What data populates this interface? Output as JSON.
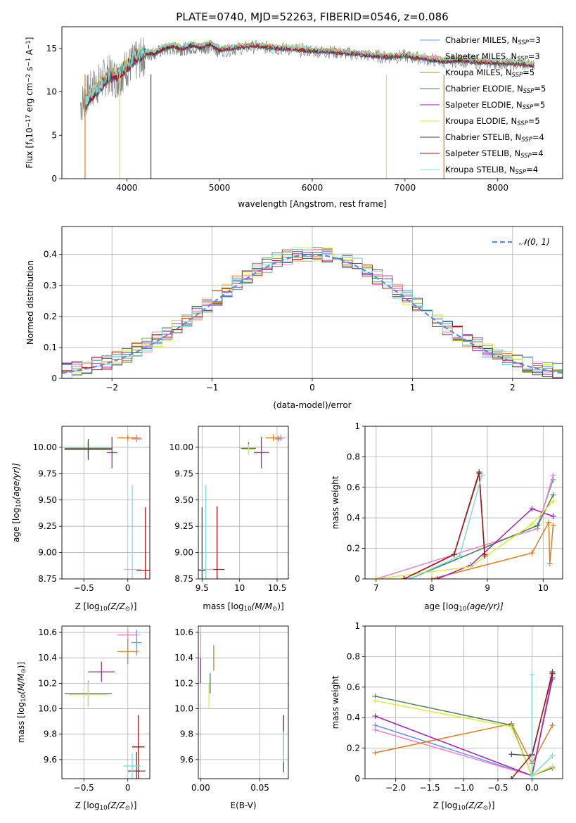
{
  "figure": {
    "title": "PLATE=0740, MJD=52263, FIBERID=0546, z=0.086"
  },
  "series_styles": [
    {
      "name": "Chabrier MILES, N_SSP=3",
      "label_main": "Chabrier MILES, N",
      "label_sub": "SSP",
      "label_tail": "=3",
      "color": "#6495ed"
    },
    {
      "name": "Salpeter MILES, N_SSP=3",
      "label_main": "Salpeter MILES, N",
      "label_sub": "SSP",
      "label_tail": "=3",
      "color": "#f781bf"
    },
    {
      "name": "Kroupa MILES, N_SSP=5",
      "label_main": "Kroupa MILES, N",
      "label_sub": "SSP",
      "label_tail": "=5",
      "color": "#e07b24"
    },
    {
      "name": "Chabrier ELODIE, N_SSP=5",
      "label_main": "Chabrier ELODIE, N",
      "label_sub": "SSP",
      "label_tail": "=5",
      "color": "#4f7f55"
    },
    {
      "name": "Salpeter ELODIE, N_SSP=5",
      "label_main": "Salpeter ELODIE, N",
      "label_sub": "SSP",
      "label_tail": "=5",
      "color": "#9b27ad"
    },
    {
      "name": "Kroupa ELODIE, N_SSP=5",
      "label_main": "Kroupa ELODIE, N",
      "label_sub": "SSP",
      "label_tail": "=5",
      "color": "#d8ec3c"
    },
    {
      "name": "Chabrier STELIB, N_SSP=4",
      "label_main": "Chabrier STELIB, N",
      "label_sub": "SSP",
      "label_tail": "=4",
      "color": "#4a4a4a"
    },
    {
      "name": "Salpeter STELIB, N_SSP=4",
      "label_main": "Salpeter STELIB, N",
      "label_sub": "SSP",
      "label_tail": "=4",
      "color": "#b01010"
    },
    {
      "name": "Kroupa STELIB, N_SSP=4",
      "label_main": "Kroupa STELIB, N",
      "label_sub": "SSP",
      "label_tail": "=4",
      "color": "#7fd9d9"
    }
  ],
  "chart_data": [
    {
      "id": "spectrum",
      "type": "line",
      "xlabel": "wavelength [Angstrom, rest frame]",
      "ylabel": "Flux [f_λ 10^-17 erg cm^-2 s^-1 A^-1]",
      "ylabel_parts": [
        "Flux [f",
        "λ",
        "10",
        "−17",
        " erg cm",
        "−2",
        " s",
        "−1",
        " A",
        "−1",
        "]"
      ],
      "xlim": [
        3300,
        8700
      ],
      "ylim": [
        0,
        17.5
      ],
      "xticks": [
        4000,
        5000,
        6000,
        7000,
        8000
      ],
      "yticks": [
        0,
        5,
        10,
        15
      ],
      "grid": false,
      "legend_position": "upper-right",
      "data_color": "#808080",
      "data_x": [
        3500,
        3600,
        3700,
        3800,
        3900,
        4000,
        4100,
        4200,
        4300,
        4400,
        4500,
        4600,
        4700,
        4800,
        4900,
        5000,
        5200,
        5400,
        5600,
        5800,
        6000,
        6200,
        6400,
        6600,
        6800,
        7000,
        7200,
        7400,
        7600,
        7800,
        8000,
        8200,
        8400
      ],
      "data_y": [
        8.5,
        10.0,
        11.0,
        12.0,
        11.5,
        12.8,
        13.5,
        14.2,
        14.5,
        14.8,
        15.0,
        14.9,
        15.1,
        15.0,
        15.2,
        14.7,
        15.0,
        15.2,
        15.0,
        14.9,
        14.7,
        14.6,
        14.4,
        14.2,
        14.0,
        14.1,
        13.8,
        13.5,
        13.6,
        13.4,
        13.3,
        13.2,
        13.0
      ],
      "model_x": [
        3550,
        3600,
        3700,
        3800,
        3900,
        4000,
        4100,
        4200,
        4300,
        4400,
        4500,
        4600,
        4700,
        4800,
        4900,
        5000,
        5200,
        5400,
        5600,
        5800,
        6000,
        6200,
        6400,
        6600,
        6800,
        7000,
        7200,
        7400,
        7600,
        7800,
        8000,
        8200,
        8400
      ],
      "model_y": [
        8.6,
        9.5,
        10.5,
        11.8,
        12.0,
        13.0,
        14.0,
        14.6,
        14.5,
        15.1,
        15.4,
        15.0,
        15.5,
        15.2,
        15.6,
        14.9,
        15.2,
        15.4,
        15.1,
        15.0,
        14.8,
        14.7,
        14.5,
        14.3,
        14.1,
        14.2,
        13.9,
        13.6,
        13.7,
        13.5,
        13.4,
        13.3,
        13.1
      ]
    },
    {
      "id": "residuals",
      "type": "line",
      "xlabel": "(data-model)/error",
      "ylabel": "Normed distribution",
      "xlim": [
        -2.5,
        2.5
      ],
      "ylim": [
        0,
        0.49
      ],
      "xticks": [
        -2,
        -1,
        0,
        1,
        2
      ],
      "yticks": [
        0.0,
        0.1,
        0.2,
        0.3,
        0.4
      ],
      "grid": true,
      "legend_position": "upper-right",
      "legend": "𝒩(0, 1)",
      "gauss_color": "#5b8bd9",
      "bin_width": 0.1
    },
    {
      "id": "age-vs-Z",
      "type": "scatter",
      "xlabel": "Z [log10(Z/Z⊙)]",
      "xlabel_parts": [
        "Z [log",
        "10",
        "(Z/Z",
        "⊙",
        ")]"
      ],
      "ylabel_parts": [
        "age  [log",
        "10",
        "(age/yr)]"
      ],
      "xlim": [
        -0.75,
        0.25
      ],
      "ylim": [
        8.75,
        10.2
      ],
      "xticks": [
        -0.5,
        0.0
      ],
      "yticks": [
        8.75,
        9.0,
        9.25,
        9.5,
        9.75,
        10.0
      ],
      "ytick_labels": [
        "8.75",
        "9.00",
        "9.25",
        "9.50",
        "9.75",
        "10.00"
      ],
      "grid": true,
      "points": [
        {
          "s": 0,
          "x": 0.1,
          "y": 10.08,
          "ex": 0.06,
          "ey": 0.03
        },
        {
          "s": 1,
          "x": 0.1,
          "y": 10.09,
          "ex": 0.05,
          "ey": 0.03
        },
        {
          "s": 2,
          "x": 0.0,
          "y": 10.09,
          "ex": 0.12,
          "ey": 0.03
        },
        {
          "s": 3,
          "x": -0.45,
          "y": 9.99,
          "ex": 0.27,
          "ey": 0.06
        },
        {
          "s": 4,
          "x": -0.18,
          "y": 9.95,
          "ex": 0.06,
          "ey": 0.15
        },
        {
          "s": 5,
          "x": -0.45,
          "y": 9.98,
          "ex": 0.22,
          "ey": 0.05
        },
        {
          "s": 6,
          "x": -0.45,
          "y": 9.98,
          "ex": 0.27,
          "ey": 0.1
        },
        {
          "s": 7,
          "x": 0.2,
          "y": 8.83,
          "ex": 0.1,
          "ey": 0.6
        },
        {
          "s": 8,
          "x": 0.05,
          "y": 8.84,
          "ex": 0.1,
          "ey": 0.8
        }
      ]
    },
    {
      "id": "age-vs-mass",
      "type": "scatter",
      "xlabel_parts": [
        "mass [log",
        "10",
        "(M/M",
        "⊙",
        ")]"
      ],
      "xlim": [
        9.45,
        10.65
      ],
      "ylim": [
        8.75,
        10.2
      ],
      "xticks": [
        9.5,
        10.0,
        10.5
      ],
      "yticks": [
        8.75,
        9.0,
        9.25,
        9.5,
        9.75,
        10.0
      ],
      "ytick_labels": [
        "8.75",
        "9.00",
        "9.25",
        "9.50",
        "9.75",
        "10.00"
      ],
      "grid": true,
      "points": [
        {
          "s": 0,
          "x": 10.52,
          "y": 10.08,
          "ex": 0.05,
          "ey": 0.03
        },
        {
          "s": 1,
          "x": 10.55,
          "y": 10.09,
          "ex": 0.05,
          "ey": 0.03
        },
        {
          "s": 2,
          "x": 10.45,
          "y": 10.09,
          "ex": 0.1,
          "ey": 0.03
        },
        {
          "s": 3,
          "x": 10.12,
          "y": 9.99,
          "ex": 0.1,
          "ey": 0.06
        },
        {
          "s": 4,
          "x": 10.29,
          "y": 9.95,
          "ex": 0.1,
          "ey": 0.15
        },
        {
          "s": 5,
          "x": 10.12,
          "y": 9.98,
          "ex": 0.08,
          "ey": 0.05
        },
        {
          "s": 6,
          "x": 9.5,
          "y": 8.83,
          "ex": 0.05,
          "ey": 0.6
        },
        {
          "s": 7,
          "x": 9.7,
          "y": 8.84,
          "ex": 0.1,
          "ey": 0.6
        },
        {
          "s": 8,
          "x": 9.55,
          "y": 8.84,
          "ex": 0.1,
          "ey": 0.8
        }
      ]
    },
    {
      "id": "mass-weight-vs-age",
      "type": "line",
      "xlabel_parts": [
        "age  [log",
        "10",
        "(age/yr)]"
      ],
      "ylabel": "mass weight",
      "xlim": [
        6.8,
        10.35
      ],
      "ylim": [
        0,
        1.0
      ],
      "xticks": [
        7,
        8,
        9,
        10
      ],
      "yticks": [
        0.0,
        0.2,
        0.4,
        0.6,
        0.8,
        1.0
      ],
      "grid": true,
      "series": [
        {
          "s": 0,
          "x": [
            7.6,
            9.9,
            10.18
          ],
          "y": [
            0.0,
            0.35,
            0.65
          ]
        },
        {
          "s": 1,
          "x": [
            7.0,
            9.9,
            10.18
          ],
          "y": [
            0.0,
            0.33,
            0.68
          ]
        },
        {
          "s": 2,
          "x": [
            8.0,
            9.8,
            10.1,
            10.12,
            10.18
          ],
          "y": [
            0.0,
            0.17,
            0.37,
            0.1,
            0.35
          ]
        },
        {
          "s": 3,
          "x": [
            7.6,
            9.9,
            10.18
          ],
          "y": [
            0.0,
            0.35,
            0.55
          ]
        },
        {
          "s": 4,
          "x": [
            8.1,
            8.7,
            9.8,
            10.18
          ],
          "y": [
            0.0,
            0.09,
            0.46,
            0.41
          ]
        },
        {
          "s": 5,
          "x": [
            7.0,
            8.7,
            9.8,
            10.18
          ],
          "y": [
            0.0,
            0.08,
            0.36,
            0.51
          ]
        },
        {
          "s": 6,
          "x": [
            7.5,
            8.4,
            8.85,
            8.95
          ],
          "y": [
            0.0,
            0.16,
            0.7,
            0.15
          ]
        },
        {
          "s": 7,
          "x": [
            7.5,
            8.4,
            8.85,
            8.95
          ],
          "y": [
            0.0,
            0.16,
            0.69,
            0.16
          ]
        },
        {
          "s": 8,
          "x": [
            7.6,
            8.5,
            8.9
          ],
          "y": [
            0.0,
            0.15,
            0.68
          ]
        }
      ]
    },
    {
      "id": "mass-vs-Z",
      "type": "scatter",
      "xlabel_parts": [
        "Z [log",
        "10",
        "(Z/Z",
        "⊙",
        ")]"
      ],
      "ylabel_parts": [
        "mass [log",
        "10",
        "(M/M",
        "⊙",
        ")]"
      ],
      "xlim": [
        -0.75,
        0.25
      ],
      "ylim": [
        9.45,
        10.65
      ],
      "xticks": [
        -0.5,
        0.0
      ],
      "yticks": [
        9.6,
        9.8,
        10.0,
        10.2,
        10.4,
        10.6
      ],
      "ytick_labels": [
        "9.6",
        "9.8",
        "10.0",
        "10.2",
        "10.4",
        "10.6"
      ],
      "grid": true,
      "points": [
        {
          "s": 0,
          "x": 0.1,
          "y": 10.52,
          "ex": 0.06,
          "ey": 0.1
        },
        {
          "s": 1,
          "x": 0.0,
          "y": 10.58,
          "ex": 0.12,
          "ey": 0.05
        },
        {
          "s": 2,
          "x": 0.0,
          "y": 10.45,
          "ex": 0.12,
          "ey": 0.1
        },
        {
          "s": 3,
          "x": -0.45,
          "y": 10.12,
          "ex": 0.27,
          "ey": 0.1
        },
        {
          "s": 4,
          "x": -0.3,
          "y": 10.29,
          "ex": 0.15,
          "ey": 0.08
        },
        {
          "s": 5,
          "x": -0.45,
          "y": 10.11,
          "ex": 0.22,
          "ey": 0.1
        },
        {
          "s": 6,
          "x": 0.1,
          "y": 9.51,
          "ex": 0.1,
          "ey": 0.15
        },
        {
          "s": 7,
          "x": 0.12,
          "y": 9.7,
          "ex": 0.07,
          "ey": 0.25
        },
        {
          "s": 8,
          "x": 0.05,
          "y": 9.55,
          "ex": 0.1,
          "ey": 0.1
        }
      ]
    },
    {
      "id": "mass-vs-EBV",
      "type": "scatter",
      "xlabel": "E(B-V)",
      "xlim": [
        -0.002,
        0.074
      ],
      "ylim": [
        9.45,
        10.65
      ],
      "xticks": [
        0.0,
        0.05
      ],
      "xtick_labels": [
        "0.00",
        "0.05"
      ],
      "yticks": [
        9.6,
        9.8,
        10.0,
        10.2,
        10.4,
        10.6
      ],
      "ytick_labels": [
        "9.6",
        "9.8",
        "10.0",
        "10.2",
        "10.4",
        "10.6"
      ],
      "grid": true,
      "points": [
        {
          "s": 0,
          "x": 0.0,
          "y": 10.3,
          "ex": 0.0,
          "ey": 0.1
        },
        {
          "s": 1,
          "x": 0.0,
          "y": 10.45,
          "ex": 0.0,
          "ey": 0.15
        },
        {
          "s": 2,
          "x": 0.011,
          "y": 10.4,
          "ex": 0.0,
          "ey": 0.1
        },
        {
          "s": 3,
          "x": 0.008,
          "y": 10.2,
          "ex": 0.0,
          "ey": 0.08
        },
        {
          "s": 4,
          "x": 0.0,
          "y": 10.3,
          "ex": 0.0,
          "ey": 0.1
        },
        {
          "s": 5,
          "x": 0.007,
          "y": 10.1,
          "ex": 0.0,
          "ey": 0.1
        },
        {
          "s": 6,
          "x": 0.07,
          "y": 9.65,
          "ex": 0.0,
          "ey": 0.15
        },
        {
          "s": 7,
          "x": 0.07,
          "y": 9.8,
          "ex": 0.0,
          "ey": 0.15
        },
        {
          "s": 8,
          "x": 0.07,
          "y": 9.7,
          "ex": 0.0,
          "ey": 0.12
        }
      ]
    },
    {
      "id": "mass-weight-vs-Z",
      "type": "line",
      "xlabel_parts": [
        "Z [log",
        "10",
        "(Z/Z",
        "⊙",
        ")]"
      ],
      "ylabel": "mass weight",
      "xlim": [
        -2.45,
        0.45
      ],
      "ylim": [
        0,
        1.0
      ],
      "xticks": [
        -2.0,
        -1.5,
        -1.0,
        -0.5,
        0.0
      ],
      "xtick_labels": [
        "−2.0",
        "−1.5",
        "−1.0",
        "−0.5",
        "0.0"
      ],
      "yticks": [
        0.0,
        0.2,
        0.4,
        0.6,
        0.8,
        1.0
      ],
      "grid": true,
      "series": [
        {
          "s": 0,
          "x": [
            -2.3,
            0.0,
            0.3
          ],
          "y": [
            0.35,
            0.02,
            0.65
          ]
        },
        {
          "s": 1,
          "x": [
            -2.3,
            0.0,
            0.3
          ],
          "y": [
            0.32,
            0.02,
            0.68
          ]
        },
        {
          "s": 2,
          "x": [
            -2.3,
            -0.3,
            0.0,
            0.3
          ],
          "y": [
            0.17,
            0.36,
            0.1,
            0.35
          ]
        },
        {
          "s": 3,
          "x": [
            -2.3,
            -0.3,
            0.0,
            0.3
          ],
          "y": [
            0.54,
            0.35,
            0.02,
            0.07
          ]
        },
        {
          "s": 4,
          "x": [
            -2.3,
            0.0,
            0.3
          ],
          "y": [
            0.41,
            0.02,
            0.66
          ]
        },
        {
          "s": 5,
          "x": [
            -2.3,
            -0.3,
            0.0,
            0.3
          ],
          "y": [
            0.51,
            0.34,
            0.02,
            0.08
          ]
        },
        {
          "s": 6,
          "x": [
            -0.3,
            0.0,
            0.3
          ],
          "y": [
            0.16,
            0.15,
            0.7
          ]
        },
        {
          "s": 7,
          "x": [
            -0.3,
            0.0,
            0.3
          ],
          "y": [
            0.0,
            0.16,
            0.69
          ]
        },
        {
          "s": 8,
          "x": [
            0.0,
            0.0,
            0.3
          ],
          "y": [
            0.68,
            0.02,
            0.15
          ]
        }
      ]
    }
  ]
}
